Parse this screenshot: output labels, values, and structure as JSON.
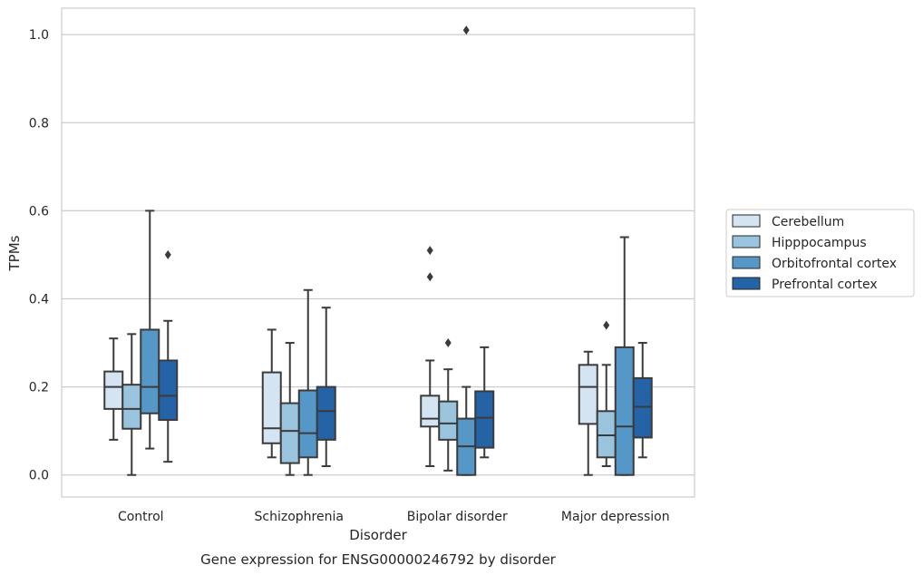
{
  "chart_data": {
    "type": "box",
    "title": "",
    "caption": "Gene expression for ENSG00000246792 by disorder",
    "xlabel": "Disorder",
    "ylabel": "TPMs",
    "categories": [
      "Control",
      "Schizophrenia",
      "Bipolar disorder",
      "Major depression"
    ],
    "ylim": [
      -0.05,
      1.06
    ],
    "yticks": [
      0.0,
      0.2,
      0.4,
      0.6,
      0.8,
      1.0
    ],
    "ytick_labels": [
      "0.0",
      "0.2",
      "0.4",
      "0.6",
      "0.8",
      "1.0"
    ],
    "grid": true,
    "legend_position": "center-right outside",
    "series": [
      {
        "name": "Cerebellum",
        "color": "#d4e4f3",
        "boxes": [
          {
            "min": 0.08,
            "q1": 0.15,
            "median": 0.2,
            "q3": 0.235,
            "max": 0.31,
            "outliers": []
          },
          {
            "min": 0.04,
            "q1": 0.072,
            "median": 0.106,
            "q3": 0.233,
            "max": 0.33,
            "outliers": []
          },
          {
            "min": 0.02,
            "q1": 0.11,
            "median": 0.128,
            "q3": 0.18,
            "max": 0.26,
            "outliers": [
              0.45,
              0.51
            ]
          },
          {
            "min": 0.0,
            "q1": 0.116,
            "median": 0.2,
            "q3": 0.25,
            "max": 0.28,
            "outliers": []
          }
        ]
      },
      {
        "name": "Hipppocampus",
        "color": "#9ac4de",
        "boxes": [
          {
            "min": 0.0,
            "q1": 0.105,
            "median": 0.15,
            "q3": 0.205,
            "max": 0.32,
            "outliers": []
          },
          {
            "min": 0.0,
            "q1": 0.027,
            "median": 0.1,
            "q3": 0.163,
            "max": 0.3,
            "outliers": []
          },
          {
            "min": 0.01,
            "q1": 0.08,
            "median": 0.117,
            "q3": 0.167,
            "max": 0.24,
            "outliers": [
              0.3
            ]
          },
          {
            "min": 0.02,
            "q1": 0.04,
            "median": 0.09,
            "q3": 0.145,
            "max": 0.25,
            "outliers": [
              0.34
            ]
          }
        ]
      },
      {
        "name": "Orbitofrontal cortex",
        "color": "#5597c7",
        "boxes": [
          {
            "min": 0.06,
            "q1": 0.14,
            "median": 0.2,
            "q3": 0.33,
            "max": 0.6,
            "outliers": []
          },
          {
            "min": 0.0,
            "q1": 0.04,
            "median": 0.095,
            "q3": 0.192,
            "max": 0.42,
            "outliers": []
          },
          {
            "min": 0.0,
            "q1": 0.0,
            "median": 0.065,
            "q3": 0.128,
            "max": 0.2,
            "outliers": [
              1.01
            ]
          },
          {
            "min": 0.0,
            "q1": 0.0,
            "median": 0.11,
            "q3": 0.29,
            "max": 0.54,
            "outliers": []
          }
        ]
      },
      {
        "name": "Prefrontal cortex",
        "color": "#2363a6",
        "boxes": [
          {
            "min": 0.03,
            "q1": 0.125,
            "median": 0.18,
            "q3": 0.26,
            "max": 0.35,
            "outliers": [
              0.5
            ]
          },
          {
            "min": 0.02,
            "q1": 0.08,
            "median": 0.145,
            "q3": 0.2,
            "max": 0.38,
            "outliers": []
          },
          {
            "min": 0.04,
            "q1": 0.062,
            "median": 0.13,
            "q3": 0.19,
            "max": 0.29,
            "outliers": []
          },
          {
            "min": 0.04,
            "q1": 0.085,
            "median": 0.155,
            "q3": 0.22,
            "max": 0.3,
            "outliers": []
          }
        ]
      }
    ]
  }
}
